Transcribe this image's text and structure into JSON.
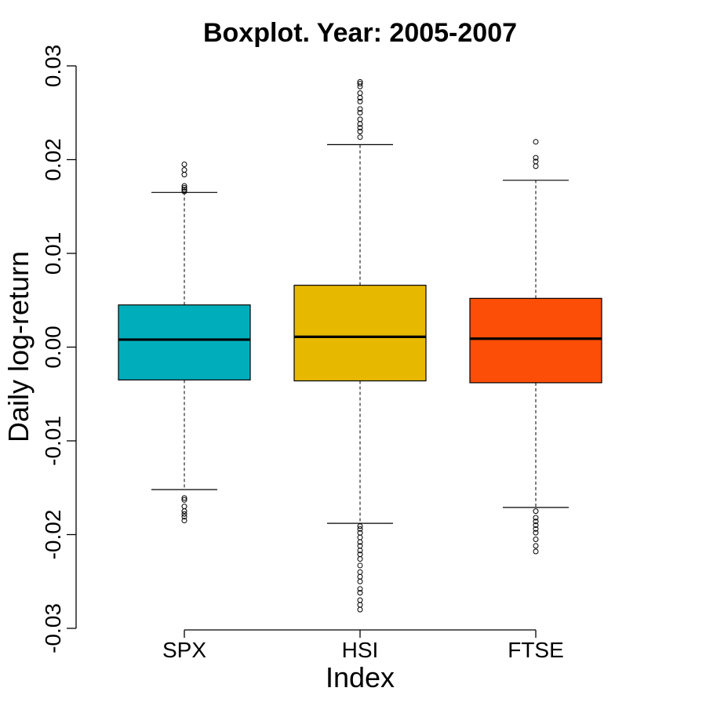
{
  "chart_data": {
    "type": "boxplot",
    "title": "Boxplot. Year: 2005-2007",
    "xlabel": "Index",
    "ylabel": "Daily log-return",
    "ylim": [
      -0.03,
      0.03
    ],
    "yticks": [
      "-0.03",
      "-0.02",
      "-0.01",
      "0.00",
      "0.01",
      "0.02",
      "0.03"
    ],
    "grid": false,
    "categories": [
      "SPX",
      "HSI",
      "FTSE"
    ],
    "boxes": [
      {
        "name": "SPX",
        "color": "#00AEBB",
        "whisker_low": -0.0152,
        "q1": -0.0035,
        "median": 0.0008,
        "q3": 0.0045,
        "whisker_high": 0.0165,
        "outliers": [
          0.0195,
          0.0189,
          0.0184,
          0.0172,
          0.017,
          0.0168,
          0.0166,
          -0.0161,
          -0.0163,
          -0.017,
          -0.0175,
          -0.0178,
          -0.0181,
          -0.0185
        ]
      },
      {
        "name": "HSI",
        "color": "#E7B800",
        "whisker_low": -0.0188,
        "q1": -0.0036,
        "median": 0.0011,
        "q3": 0.0066,
        "whisker_high": 0.0216,
        "outliers": [
          0.0283,
          0.0281,
          0.0278,
          0.0271,
          0.0266,
          0.0262,
          0.0254,
          0.025,
          0.0243,
          0.0238,
          0.0234,
          0.023,
          0.0224,
          -0.0191,
          -0.0194,
          -0.0198,
          -0.0203,
          -0.0208,
          -0.0212,
          -0.0217,
          -0.0221,
          -0.0226,
          -0.0233,
          -0.024,
          -0.0245,
          -0.025,
          -0.0258,
          -0.0262,
          -0.027,
          -0.0275,
          -0.028
        ]
      },
      {
        "name": "FTSE",
        "color": "#FC4E07",
        "whisker_low": -0.0171,
        "q1": -0.0038,
        "median": 0.0009,
        "q3": 0.0052,
        "whisker_high": 0.0178,
        "outliers": [
          0.0219,
          0.0202,
          0.0198,
          0.0193,
          -0.0175,
          -0.0182,
          -0.0186,
          -0.019,
          -0.0194,
          -0.0198,
          -0.0205,
          -0.0212,
          -0.0218
        ]
      }
    ]
  }
}
